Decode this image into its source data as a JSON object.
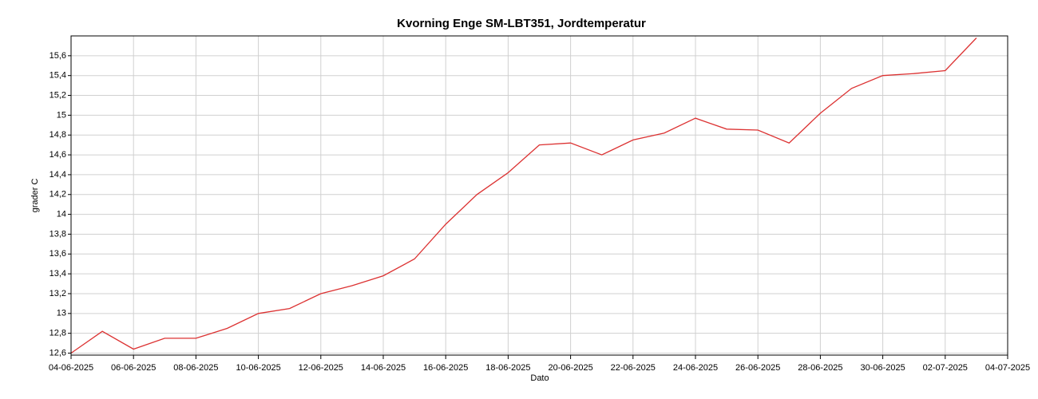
{
  "chart_data": {
    "type": "line",
    "title": "Kvorning Enge SM-LBT351, Jordtemperatur",
    "x_label": "Dato",
    "y_label": "grader C",
    "x": [
      "04-06-2025",
      "05-06-2025",
      "06-06-2025",
      "07-06-2025",
      "08-06-2025",
      "09-06-2025",
      "10-06-2025",
      "11-06-2025",
      "12-06-2025",
      "13-06-2025",
      "14-06-2025",
      "15-06-2025",
      "16-06-2025",
      "17-06-2025",
      "18-06-2025",
      "19-06-2025",
      "20-06-2025",
      "21-06-2025",
      "22-06-2025",
      "23-06-2025",
      "24-06-2025",
      "25-06-2025",
      "26-06-2025",
      "27-06-2025",
      "28-06-2025",
      "29-06-2025",
      "30-06-2025",
      "01-07-2025",
      "02-07-2025",
      "03-07-2025"
    ],
    "series": [
      {
        "name": "Jordtemperatur",
        "color": "#dc3232",
        "values": [
          12.6,
          12.82,
          12.64,
          12.75,
          12.75,
          12.85,
          13.0,
          13.05,
          13.2,
          13.28,
          13.38,
          13.55,
          13.9,
          14.2,
          14.42,
          14.7,
          14.72,
          14.6,
          14.75,
          14.82,
          14.97,
          14.86,
          14.85,
          14.72,
          15.02,
          15.27,
          15.4,
          15.42,
          15.45,
          15.78
        ]
      }
    ],
    "xlim": [
      "04-06-2025",
      "04-07-2025"
    ],
    "xticks": [
      "04-06-2025",
      "06-06-2025",
      "08-06-2025",
      "10-06-2025",
      "12-06-2025",
      "14-06-2025",
      "16-06-2025",
      "18-06-2025",
      "20-06-2025",
      "22-06-2025",
      "24-06-2025",
      "26-06-2025",
      "28-06-2025",
      "30-06-2025",
      "02-07-2025",
      "04-07-2025"
    ],
    "ylim": [
      12.58,
      15.8
    ],
    "yticks": [
      {
        "value": 12.6,
        "label": "12,6"
      },
      {
        "value": 12.8,
        "label": "12,8"
      },
      13,
      {
        "value": 13.2,
        "label": "13,2"
      },
      {
        "value": 13.4,
        "label": "13,4"
      },
      {
        "value": 13.6,
        "label": "13,6"
      },
      {
        "value": 13.8,
        "label": "13,8"
      },
      14,
      {
        "value": 14.2,
        "label": "14,2"
      },
      {
        "value": 14.4,
        "label": "14,4"
      },
      {
        "value": 14.6,
        "label": "14,6"
      },
      {
        "value": 14.8,
        "label": "14,8"
      },
      15,
      {
        "value": 15.2,
        "label": "15,2"
      },
      {
        "value": 15.4,
        "label": "15,4"
      },
      {
        "value": 15.6,
        "label": "15,6"
      }
    ],
    "grid": true
  }
}
